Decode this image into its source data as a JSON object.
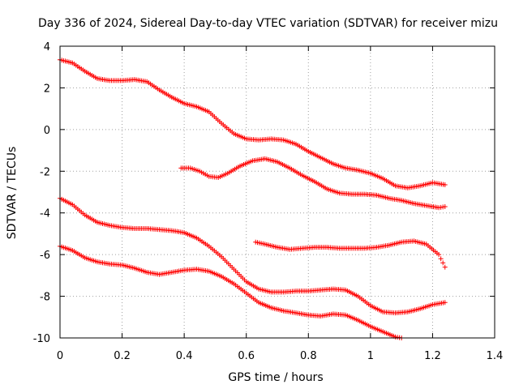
{
  "chart_data": {
    "type": "scatter",
    "title": "Day 336 of 2024, Sidereal Day-to-day VTEC variation (SDTVAR) for receiver mizu",
    "xlabel": "GPS time / hours",
    "ylabel": "SDTVAR / TECUs",
    "xlim": [
      0,
      1.4
    ],
    "ylim": [
      -10,
      4
    ],
    "x_ticks": [
      0,
      0.2,
      0.4,
      0.6,
      0.8,
      1,
      1.2,
      1.4
    ],
    "x_tick_labels": [
      "0",
      "0.2",
      "0.4",
      "0.6",
      "0.8",
      "1",
      "1.2",
      "1.4"
    ],
    "y_ticks": [
      -10,
      -8,
      -6,
      -4,
      -2,
      0,
      2,
      4
    ],
    "y_tick_labels": [
      "-10",
      "-8",
      "-6",
      "-4",
      "-2",
      "0",
      "2",
      "4"
    ],
    "grid": true,
    "marker": "+",
    "marker_color": "#ff0000",
    "series": [
      {
        "name": "series-1",
        "points": [
          [
            0,
            3.35
          ],
          [
            0.04,
            3.2
          ],
          [
            0.08,
            2.8
          ],
          [
            0.12,
            2.45
          ],
          [
            0.16,
            2.35
          ],
          [
            0.2,
            2.35
          ],
          [
            0.24,
            2.4
          ],
          [
            0.28,
            2.3
          ],
          [
            0.32,
            1.9
          ],
          [
            0.36,
            1.55
          ],
          [
            0.4,
            1.25
          ],
          [
            0.44,
            1.1
          ],
          [
            0.48,
            0.85
          ],
          [
            0.52,
            0.3
          ],
          [
            0.56,
            -0.2
          ],
          [
            0.6,
            -0.45
          ],
          [
            0.64,
            -0.5
          ],
          [
            0.68,
            -0.45
          ],
          [
            0.72,
            -0.5
          ],
          [
            0.76,
            -0.7
          ],
          [
            0.8,
            -1.05
          ],
          [
            0.84,
            -1.35
          ],
          [
            0.88,
            -1.65
          ],
          [
            0.92,
            -1.85
          ],
          [
            0.96,
            -1.95
          ],
          [
            1,
            -2.1
          ],
          [
            1.04,
            -2.35
          ],
          [
            1.08,
            -2.7
          ],
          [
            1.12,
            -2.8
          ],
          [
            1.16,
            -2.7
          ],
          [
            1.2,
            -2.55
          ],
          [
            1.24,
            -2.65
          ]
        ]
      },
      {
        "name": "series-2",
        "points": [
          [
            0.39,
            -1.85
          ],
          [
            0.42,
            -1.85
          ],
          [
            0.45,
            -2.0
          ],
          [
            0.48,
            -2.25
          ],
          [
            0.51,
            -2.3
          ],
          [
            0.54,
            -2.1
          ],
          [
            0.58,
            -1.75
          ],
          [
            0.62,
            -1.5
          ],
          [
            0.66,
            -1.4
          ],
          [
            0.7,
            -1.55
          ],
          [
            0.74,
            -1.85
          ],
          [
            0.78,
            -2.2
          ],
          [
            0.82,
            -2.5
          ],
          [
            0.86,
            -2.85
          ],
          [
            0.9,
            -3.05
          ],
          [
            0.94,
            -3.1
          ],
          [
            0.98,
            -3.1
          ],
          [
            1.02,
            -3.15
          ],
          [
            1.06,
            -3.3
          ],
          [
            1.1,
            -3.4
          ],
          [
            1.14,
            -3.55
          ],
          [
            1.18,
            -3.65
          ],
          [
            1.22,
            -3.75
          ],
          [
            1.24,
            -3.7
          ]
        ]
      },
      {
        "name": "series-3",
        "points": [
          [
            0,
            -3.3
          ],
          [
            0.04,
            -3.6
          ],
          [
            0.08,
            -4.1
          ],
          [
            0.12,
            -4.45
          ],
          [
            0.16,
            -4.6
          ],
          [
            0.2,
            -4.7
          ],
          [
            0.24,
            -4.75
          ],
          [
            0.28,
            -4.75
          ],
          [
            0.32,
            -4.8
          ],
          [
            0.36,
            -4.85
          ],
          [
            0.4,
            -4.95
          ],
          [
            0.44,
            -5.2
          ],
          [
            0.48,
            -5.6
          ],
          [
            0.52,
            -6.1
          ],
          [
            0.56,
            -6.7
          ],
          [
            0.6,
            -7.3
          ],
          [
            0.64,
            -7.65
          ],
          [
            0.68,
            -7.8
          ],
          [
            0.72,
            -7.8
          ],
          [
            0.76,
            -7.75
          ],
          [
            0.8,
            -7.75
          ],
          [
            0.84,
            -7.7
          ],
          [
            0.88,
            -7.65
          ],
          [
            0.92,
            -7.7
          ],
          [
            0.96,
            -8.0
          ],
          [
            1,
            -8.45
          ],
          [
            1.04,
            -8.75
          ],
          [
            1.08,
            -8.8
          ],
          [
            1.12,
            -8.75
          ],
          [
            1.16,
            -8.6
          ],
          [
            1.2,
            -8.4
          ],
          [
            1.24,
            -8.3
          ]
        ]
      },
      {
        "name": "series-4",
        "points": [
          [
            0.63,
            -5.4
          ],
          [
            0.66,
            -5.5
          ],
          [
            0.7,
            -5.65
          ],
          [
            0.74,
            -5.75
          ],
          [
            0.78,
            -5.7
          ],
          [
            0.82,
            -5.65
          ],
          [
            0.86,
            -5.65
          ],
          [
            0.9,
            -5.7
          ],
          [
            0.94,
            -5.7
          ],
          [
            0.98,
            -5.7
          ],
          [
            1.02,
            -5.65
          ],
          [
            1.06,
            -5.55
          ],
          [
            1.1,
            -5.4
          ],
          [
            1.14,
            -5.35
          ],
          [
            1.18,
            -5.5
          ],
          [
            1.22,
            -6.0
          ],
          [
            1.24,
            -6.6
          ]
        ]
      },
      {
        "name": "series-5",
        "points": [
          [
            0,
            -5.6
          ],
          [
            0.04,
            -5.8
          ],
          [
            0.08,
            -6.15
          ],
          [
            0.12,
            -6.35
          ],
          [
            0.16,
            -6.45
          ],
          [
            0.2,
            -6.5
          ],
          [
            0.24,
            -6.65
          ],
          [
            0.28,
            -6.85
          ],
          [
            0.32,
            -6.95
          ],
          [
            0.36,
            -6.85
          ],
          [
            0.4,
            -6.75
          ],
          [
            0.44,
            -6.7
          ],
          [
            0.48,
            -6.8
          ],
          [
            0.52,
            -7.05
          ],
          [
            0.56,
            -7.4
          ],
          [
            0.6,
            -7.85
          ],
          [
            0.64,
            -8.3
          ],
          [
            0.68,
            -8.55
          ],
          [
            0.72,
            -8.7
          ],
          [
            0.76,
            -8.8
          ],
          [
            0.8,
            -8.9
          ],
          [
            0.84,
            -8.95
          ],
          [
            0.88,
            -8.85
          ],
          [
            0.92,
            -8.9
          ],
          [
            0.96,
            -9.15
          ],
          [
            1,
            -9.45
          ],
          [
            1.04,
            -9.7
          ],
          [
            1.08,
            -9.95
          ],
          [
            1.1,
            -10.0
          ]
        ]
      }
    ]
  }
}
